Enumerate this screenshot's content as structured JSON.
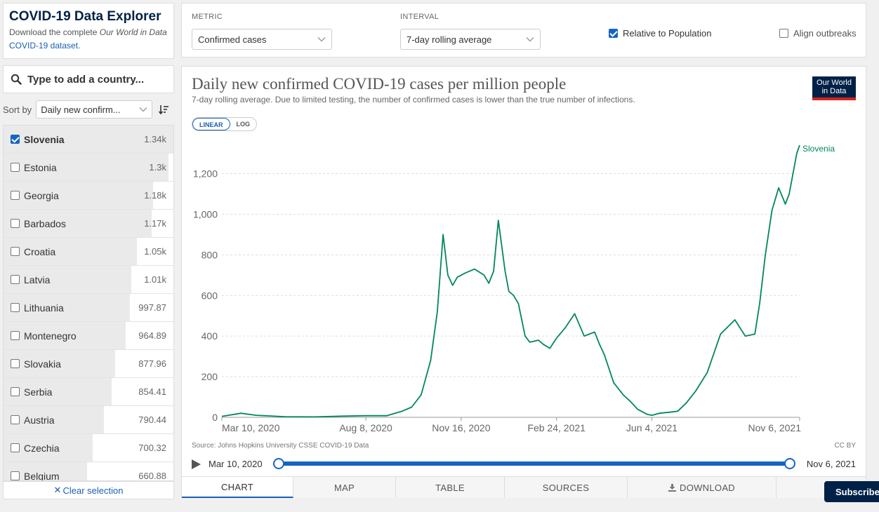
{
  "sidebar": {
    "title": "COVID-19 Data Explorer",
    "desc_prefix": "Download the complete ",
    "desc_italic": "Our World in Data",
    "desc_link": "COVID-19 dataset.",
    "search_placeholder": "Type to add a country...",
    "sort_label": "Sort by",
    "sort_value": "Daily new confirm...",
    "clear_label": "Clear selection",
    "countries": [
      {
        "name": "Slovenia",
        "value": "1.34k",
        "checked": true,
        "share": 1.0
      },
      {
        "name": "Estonia",
        "value": "1.3k",
        "checked": false,
        "share": 0.97
      },
      {
        "name": "Georgia",
        "value": "1.18k",
        "checked": false,
        "share": 0.88
      },
      {
        "name": "Barbados",
        "value": "1.17k",
        "checked": false,
        "share": 0.873
      },
      {
        "name": "Croatia",
        "value": "1.05k",
        "checked": false,
        "share": 0.784
      },
      {
        "name": "Latvia",
        "value": "1.01k",
        "checked": false,
        "share": 0.754
      },
      {
        "name": "Lithuania",
        "value": "997.87",
        "checked": false,
        "share": 0.745
      },
      {
        "name": "Montenegro",
        "value": "964.89",
        "checked": false,
        "share": 0.72
      },
      {
        "name": "Slovakia",
        "value": "877.96",
        "checked": false,
        "share": 0.655
      },
      {
        "name": "Serbia",
        "value": "854.41",
        "checked": false,
        "share": 0.638
      },
      {
        "name": "Austria",
        "value": "790.44",
        "checked": false,
        "share": 0.59
      },
      {
        "name": "Czechia",
        "value": "700.32",
        "checked": false,
        "share": 0.523
      },
      {
        "name": "Belgium",
        "value": "660.88",
        "checked": false,
        "share": 0.493
      }
    ]
  },
  "controls": {
    "metric_label": "METRIC",
    "metric_value": "Confirmed cases",
    "interval_label": "INTERVAL",
    "interval_value": "7-day rolling average",
    "relative_label": "Relative to Population",
    "relative_checked": true,
    "align_label": "Align outbreaks",
    "align_checked": false
  },
  "chart": {
    "logo_line1": "Our World",
    "logo_line2": "in Data",
    "scale_linear": "LINEAR",
    "scale_log": "LOG",
    "source": "Source: Johns Hopkins University CSSE COVID-19 Data",
    "license": "CC BY",
    "timeline_start": "Mar 10, 2020",
    "timeline_end": "Nov 6, 2021"
  },
  "tabs": [
    "CHART",
    "MAP",
    "TABLE",
    "SOURCES",
    "DOWNLOAD"
  ],
  "subscribe_label": "Subscribe",
  "colors": {
    "series": "#00875e",
    "accent": "#1565c0",
    "brand": "#002147"
  },
  "chart_data": {
    "type": "line",
    "title": "Daily new confirmed COVID-19 cases per million people",
    "subtitle": "7-day rolling average. Due to limited testing, the number of confirmed cases is lower than the true number of infections.",
    "xlabel": "",
    "ylabel": "",
    "x_range": [
      "2020-03-10",
      "2021-11-06"
    ],
    "ylim": [
      0,
      1340
    ],
    "y_ticks": [
      0,
      200,
      400,
      600,
      800,
      1000,
      1200
    ],
    "y_tick_labels": [
      "0",
      "200",
      "400",
      "600",
      "800",
      "1,000",
      "1,200"
    ],
    "x_ticks": [
      "2020-03-10",
      "2020-08-08",
      "2020-11-16",
      "2021-02-24",
      "2021-06-04",
      "2021-11-06"
    ],
    "x_tick_labels": [
      "Mar 10, 2020",
      "Aug 8, 2020",
      "Nov 16, 2020",
      "Feb 24, 2021",
      "Jun 4, 2021",
      "Nov 6, 2021"
    ],
    "grid": true,
    "series": [
      {
        "name": "Slovenia",
        "x": [
          "2020-03-10",
          "2020-03-30",
          "2020-04-15",
          "2020-05-15",
          "2020-06-15",
          "2020-07-15",
          "2020-08-08",
          "2020-08-30",
          "2020-09-15",
          "2020-09-25",
          "2020-10-05",
          "2020-10-15",
          "2020-10-22",
          "2020-10-28",
          "2020-11-02",
          "2020-11-07",
          "2020-11-12",
          "2020-11-20",
          "2020-11-30",
          "2020-12-10",
          "2020-12-15",
          "2020-12-20",
          "2020-12-25",
          "2021-01-01",
          "2021-01-05",
          "2021-01-10",
          "2021-01-15",
          "2021-01-22",
          "2021-01-27",
          "2021-02-05",
          "2021-02-10",
          "2021-02-17",
          "2021-02-24",
          "2021-03-05",
          "2021-03-15",
          "2021-03-25",
          "2021-04-05",
          "2021-04-10",
          "2021-04-15",
          "2021-04-20",
          "2021-04-25",
          "2021-05-05",
          "2021-05-12",
          "2021-05-20",
          "2021-05-30",
          "2021-06-04",
          "2021-06-12",
          "2021-06-22",
          "2021-07-01",
          "2021-07-10",
          "2021-07-20",
          "2021-08-01",
          "2021-08-15",
          "2021-08-30",
          "2021-09-10",
          "2021-09-20",
          "2021-09-25",
          "2021-10-01",
          "2021-10-08",
          "2021-10-15",
          "2021-10-22",
          "2021-10-26",
          "2021-10-30",
          "2021-11-03",
          "2021-11-06"
        ],
        "y": [
          5,
          20,
          10,
          3,
          2,
          6,
          8,
          8,
          30,
          50,
          110,
          280,
          520,
          900,
          700,
          650,
          690,
          710,
          730,
          700,
          660,
          720,
          970,
          720,
          620,
          600,
          560,
          400,
          370,
          380,
          360,
          340,
          390,
          440,
          510,
          400,
          420,
          360,
          310,
          240,
          170,
          110,
          80,
          40,
          15,
          10,
          20,
          25,
          30,
          70,
          130,
          220,
          410,
          480,
          400,
          410,
          560,
          800,
          1020,
          1130,
          1050,
          1100,
          1200,
          1300,
          1340
        ]
      }
    ]
  }
}
